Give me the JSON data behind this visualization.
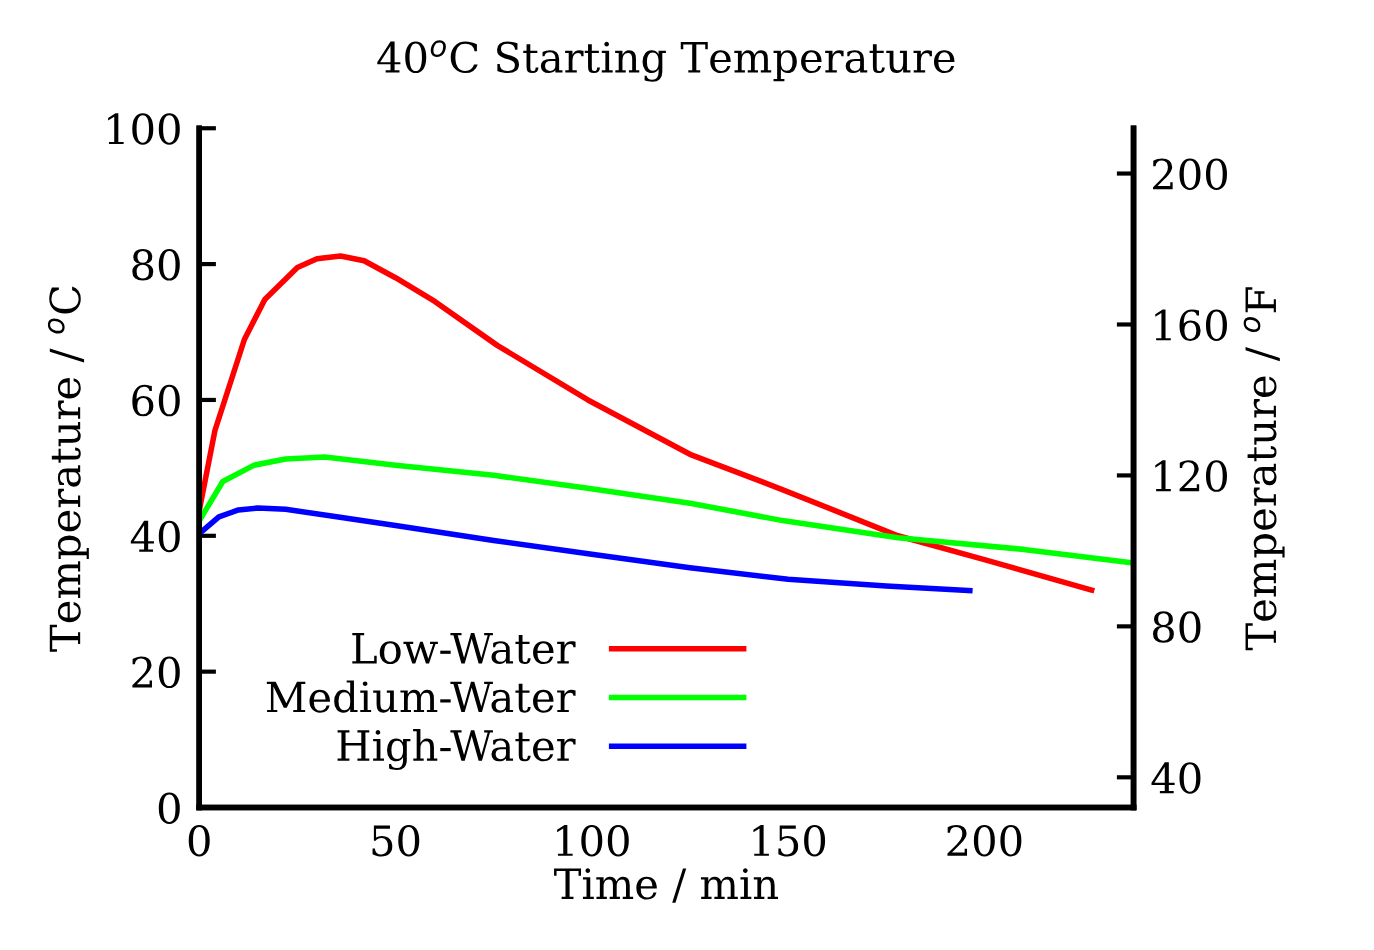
{
  "chart_data": {
    "type": "line",
    "title": "40$^{o}$C Starting Temperature",
    "xlabel": "Time / min",
    "ylabel": "Temperature / $^{o}$C",
    "y2label": "Temperature / $^{o}$F",
    "xlim": [
      0,
      238
    ],
    "xticks": [
      0,
      50,
      100,
      150,
      200
    ],
    "ylim": [
      0,
      100
    ],
    "yticks": [
      0,
      20,
      40,
      60,
      80,
      100
    ],
    "y2lim": [
      32,
      212
    ],
    "y2ticks": [
      40,
      80,
      120,
      160,
      200
    ],
    "legend": "bottom left",
    "grid": false,
    "marker": "none",
    "line_style": "solid",
    "series": [
      {
        "name": "Low-Water",
        "color": "#ff0000",
        "x": [
          0,
          4,
          11.5,
          16.7,
          25,
          30,
          36,
          42,
          50,
          60,
          76,
          99,
          125,
          149,
          178,
          200,
          228
        ],
        "values": [
          43.7,
          55.5,
          68.9,
          74.8,
          79.5,
          80.8,
          81.2,
          80.5,
          78,
          74.5,
          68,
          60,
          52,
          46.7,
          40,
          36.5,
          31.9
        ]
      },
      {
        "name": "Medium-Water",
        "color": "#00ff00",
        "x": [
          0,
          6,
          14,
          22,
          32,
          50,
          75,
          99,
          125,
          149,
          178,
          210,
          238
        ],
        "values": [
          42.2,
          48,
          50.4,
          51.3,
          51.6,
          50.4,
          48.9,
          47,
          44.8,
          42.2,
          39.7,
          38,
          36
        ]
      },
      {
        "name": "High-Water",
        "color": "#0000ff",
        "x": [
          0,
          5,
          10,
          15,
          22,
          35,
          50,
          75,
          100,
          125,
          150,
          175,
          197
        ],
        "values": [
          40.3,
          42.8,
          43.8,
          44.1,
          43.9,
          42.8,
          41.5,
          39.3,
          37.3,
          35.3,
          33.6,
          32.6,
          31.9
        ]
      }
    ]
  }
}
